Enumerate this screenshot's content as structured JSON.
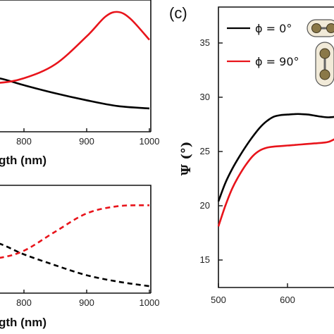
{
  "chart_data": [
    {
      "panel": "a",
      "type": "line",
      "xlabel_visible_fragment": "gth (nm)",
      "x_ticks": [
        "800",
        "900",
        "1000"
      ],
      "xlim": [
        720,
        1000
      ],
      "ylim": [
        0,
        1
      ],
      "series": [
        {
          "color": "#000000",
          "style": "solid",
          "x": [
            720,
            760,
            800,
            850,
            900,
            950,
            1000
          ],
          "y": [
            0.42,
            0.4,
            0.34,
            0.27,
            0.21,
            0.16,
            0.14
          ]
        },
        {
          "color": "#e8141b",
          "style": "solid",
          "x": [
            720,
            760,
            800,
            850,
            900,
            930,
            950,
            970,
            1000
          ],
          "y": [
            0.36,
            0.36,
            0.4,
            0.52,
            0.76,
            0.93,
            0.97,
            0.91,
            0.73
          ]
        }
      ]
    },
    {
      "panel": "b",
      "type": "line",
      "xlabel_visible_fragment": "gth (nm)",
      "x_ticks": [
        "800",
        "900",
        "1000"
      ],
      "xlim": [
        720,
        1000
      ],
      "ylim": [
        0,
        1
      ],
      "series": [
        {
          "color": "#000000",
          "style": "dashed",
          "x": [
            720,
            760,
            800,
            850,
            900,
            950,
            1000
          ],
          "y": [
            0.56,
            0.5,
            0.38,
            0.26,
            0.15,
            0.08,
            0.03
          ]
        },
        {
          "color": "#e8141b",
          "style": "dashed",
          "x": [
            720,
            760,
            800,
            850,
            900,
            950,
            1000
          ],
          "y": [
            0.32,
            0.34,
            0.42,
            0.63,
            0.83,
            0.91,
            0.92
          ]
        }
      ]
    },
    {
      "panel": "c",
      "type": "line",
      "label": "(c)",
      "ylabel": "Ψ (°)",
      "y_ticks": [
        "15",
        "20",
        "25",
        "30",
        "35"
      ],
      "x_ticks": [
        "500",
        "600"
      ],
      "xlim": [
        500,
        670
      ],
      "ylim": [
        12.5,
        37.5
      ],
      "legend_position": "top-left",
      "series": [
        {
          "name": "ϕ = 0°",
          "color": "#000000",
          "style": "solid",
          "x": [
            500,
            510,
            520,
            530,
            540,
            550,
            560,
            570,
            580,
            590,
            600,
            610,
            620,
            630,
            640,
            650,
            660,
            670
          ],
          "y": [
            20.4,
            22.1,
            23.4,
            24.5,
            25.5,
            26.4,
            27.2,
            27.8,
            28.2,
            28.35,
            28.4,
            28.45,
            28.45,
            28.4,
            28.3,
            28.2,
            28.15,
            28.2
          ]
        },
        {
          "name": "ϕ = 90°",
          "color": "#e8141b",
          "style": "solid",
          "x": [
            500,
            510,
            520,
            530,
            540,
            550,
            560,
            570,
            580,
            590,
            600,
            610,
            620,
            630,
            640,
            650,
            660,
            670
          ],
          "y": [
            18.1,
            20.0,
            21.6,
            22.8,
            23.8,
            24.6,
            25.1,
            25.35,
            25.45,
            25.5,
            25.55,
            25.6,
            25.65,
            25.7,
            25.75,
            25.8,
            25.9,
            26.2
          ]
        }
      ]
    }
  ]
}
